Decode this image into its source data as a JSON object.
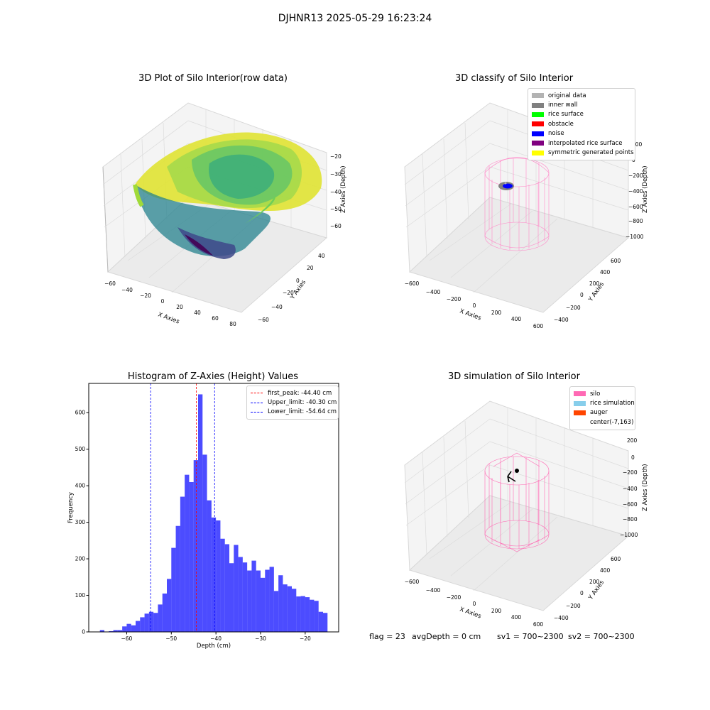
{
  "suptitle": "DJHNR13 2025-05-29 16:23:24",
  "panel1": {
    "title": "3D Plot of Silo Interior(row data)",
    "xlabel": "X Axies",
    "ylabel": "Y Axies",
    "zlabel": "Z Axies (Depth)",
    "xticks": [
      "−60",
      "−40",
      "−20",
      "0",
      "20",
      "40",
      "60",
      "80"
    ],
    "yticks": [
      "−60",
      "−40",
      "−20",
      "0",
      "20",
      "40"
    ],
    "zticks": [
      "−20",
      "−30",
      "−40",
      "−50",
      "−60"
    ]
  },
  "panel2": {
    "title": "3D classify of Silo Interior",
    "xlabel": "X Axies",
    "ylabel": "Y Axies",
    "zlabel": "Z Axies (Depth)",
    "xticks": [
      "−600",
      "−400",
      "−200",
      "0",
      "200",
      "400",
      "600"
    ],
    "yticks": [
      "−400",
      "−200",
      "0",
      "200",
      "400",
      "600"
    ],
    "zticks": [
      "200",
      "0",
      "−200",
      "−400",
      "−600",
      "−800",
      "−1000"
    ],
    "legend": [
      {
        "label": "original data",
        "color": "#b3b3b3"
      },
      {
        "label": "inner wall",
        "color": "#808080"
      },
      {
        "label": "rice surface",
        "color": "#00ff00"
      },
      {
        "label": "obstacle",
        "color": "#ff0000"
      },
      {
        "label": "noise",
        "color": "#0000ff"
      },
      {
        "label": "interpolated rice surface",
        "color": "#800080"
      },
      {
        "label": "symmetric generated points",
        "color": "#ffff00"
      }
    ]
  },
  "panel3": {
    "title": "Histogram of Z-Axies (Height) Values",
    "legend": [
      {
        "label": "first_peak: -44.40 cm",
        "color": "#ff0000"
      },
      {
        "label": "Upper_limit: -40.30 cm",
        "color": "#0000ff"
      },
      {
        "label": "Lower_limit: -54.64 cm",
        "color": "#0000ff"
      }
    ]
  },
  "panel4": {
    "title": "3D simulation of Silo Interior",
    "xlabel": "X Axies",
    "ylabel": "Y Axies",
    "zlabel": "Z Axies (Depth)",
    "xticks": [
      "−600",
      "−400",
      "−200",
      "0",
      "200",
      "400",
      "600"
    ],
    "yticks": [
      "−400",
      "−200",
      "0",
      "200",
      "400",
      "600"
    ],
    "zticks": [
      "200",
      "0",
      "−200",
      "−400",
      "−600",
      "−800",
      "−1000"
    ],
    "legend": [
      {
        "label": "silo",
        "color": "#ff69b4"
      },
      {
        "label": "rice simulation",
        "color": "#87ceeb"
      },
      {
        "label": "auger",
        "color": "#ff4500"
      },
      {
        "label": "center(-7,163)",
        "color": ""
      }
    ]
  },
  "footer": {
    "flag": "flag = 23",
    "avg_depth": "avgDepth = 0 cm",
    "sv1": "sv1 = 700~2300",
    "sv2": "sv2 = 700~2300"
  },
  "chart_data": [
    {
      "type": "scatter",
      "title": "3D Plot of Silo Interior(row data)",
      "xlabel": "X Axies",
      "ylabel": "Y Axies",
      "zlabel": "Z Axies (Depth)",
      "xlim": [
        -65,
        85
      ],
      "ylim": [
        -65,
        50
      ],
      "zlim": [
        -68,
        -13
      ],
      "colormap": "viridis",
      "note_values": "dense 3D point cloud of silo interior surface"
    },
    {
      "type": "scatter",
      "title": "3D classify of Silo Interior",
      "xlabel": "X Axies",
      "ylabel": "Y Axies",
      "zlabel": "Z Axies (Depth)",
      "series": [
        {
          "name": "original data"
        },
        {
          "name": "inner wall"
        },
        {
          "name": "rice surface"
        },
        {
          "name": "obstacle"
        },
        {
          "name": "noise"
        },
        {
          "name": "interpolated rice surface"
        },
        {
          "name": "symmetric generated points"
        }
      ]
    },
    {
      "type": "bar",
      "title": "Histogram of Z-Axies (Height) Values",
      "xlabel": "Depth (cm)",
      "ylabel": "Frequency",
      "xlim": [
        -68.5,
        -12.5
      ],
      "ylim": [
        0,
        680
      ],
      "xticks": [
        -60,
        -50,
        -40,
        -30,
        -20
      ],
      "yticks": [
        0,
        100,
        200,
        300,
        400,
        500,
        600
      ],
      "bin_start": -66.0,
      "bin_width": 1.0,
      "color": "#0000ff",
      "values": [
        5,
        0,
        2,
        5,
        5,
        15,
        22,
        18,
        30,
        40,
        50,
        55,
        52,
        75,
        105,
        145,
        230,
        290,
        370,
        430,
        410,
        470,
        650,
        485,
        360,
        313,
        305,
        255,
        240,
        188,
        238,
        205,
        190,
        168,
        195,
        168,
        148,
        170,
        178,
        112,
        155,
        130,
        125,
        118,
        97,
        98,
        95,
        88,
        85,
        55,
        52
      ],
      "lines": [
        {
          "name": "first_peak: -44.40 cm",
          "x": -44.4,
          "color": "#ff0000"
        },
        {
          "name": "Upper_limit: -40.30 cm",
          "x": -40.3,
          "color": "#0000ff"
        },
        {
          "name": "Lower_limit: -54.64 cm",
          "x": -54.64,
          "color": "#0000ff"
        }
      ]
    },
    {
      "type": "line",
      "title": "3D simulation of Silo Interior",
      "xlabel": "X Axies",
      "ylabel": "Y Axies",
      "zlabel": "Z Axies (Depth)",
      "series": [
        {
          "name": "silo"
        },
        {
          "name": "rice simulation"
        },
        {
          "name": "auger"
        },
        {
          "name": "center(-7,163)"
        }
      ]
    }
  ]
}
